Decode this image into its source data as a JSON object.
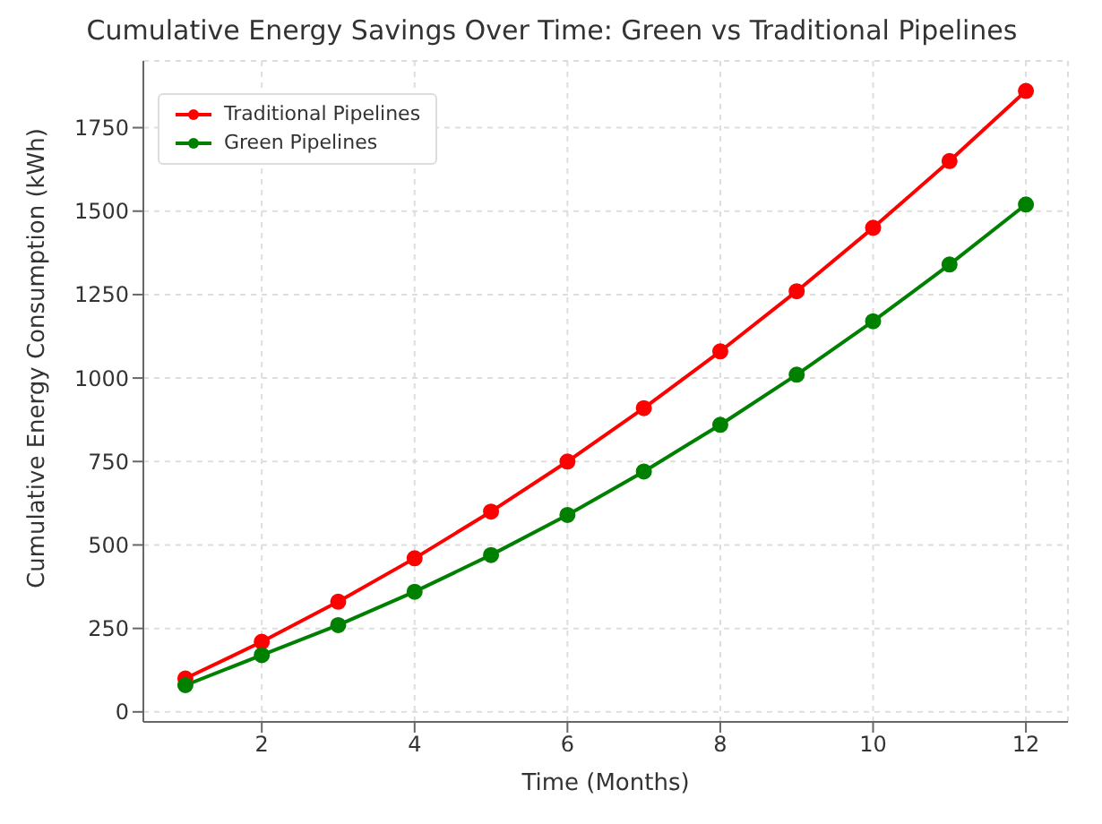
{
  "chart_data": {
    "type": "line",
    "title": "Cumulative Energy Savings Over Time: Green vs Traditional Pipelines",
    "xlabel": "Time (Months)",
    "ylabel": "Cumulative Energy Consumption (kWh)",
    "x": [
      1,
      2,
      3,
      4,
      5,
      6,
      7,
      8,
      9,
      10,
      11,
      12
    ],
    "series": [
      {
        "name": "Traditional Pipelines",
        "color": "#ff0000",
        "values": [
          100,
          210,
          330,
          460,
          600,
          750,
          910,
          1080,
          1260,
          1450,
          1650,
          1860
        ]
      },
      {
        "name": "Green Pipelines",
        "color": "#008000",
        "values": [
          80,
          170,
          260,
          360,
          470,
          590,
          720,
          860,
          1010,
          1170,
          1340,
          1520
        ]
      }
    ],
    "xlim": [
      0.45,
      12.55
    ],
    "xticks": [
      2,
      4,
      6,
      8,
      10,
      12
    ],
    "ylim": [
      -30,
      1950
    ],
    "yticks": [
      0,
      250,
      500,
      750,
      1000,
      1250,
      1500,
      1750
    ],
    "grid": true,
    "legend": "top left",
    "marker": "circle",
    "line_style": "solid"
  }
}
